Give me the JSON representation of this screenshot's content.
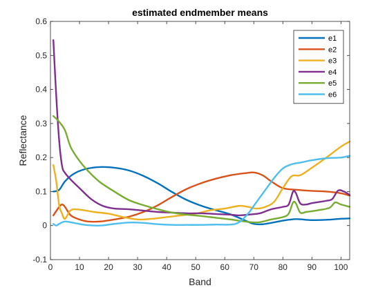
{
  "chart_data": {
    "type": "line",
    "title": "estimated endmember means",
    "xlabel": "Band",
    "ylabel": "Reflectance",
    "xlim": [
      0,
      103
    ],
    "ylim": [
      -0.1,
      0.6
    ],
    "xticks": [
      0,
      10,
      20,
      30,
      40,
      50,
      60,
      70,
      80,
      90,
      100
    ],
    "yticks": [
      -0.1,
      0,
      0.1,
      0.2,
      0.3,
      0.4,
      0.5,
      0.6
    ],
    "grid": false,
    "legend_position": "top-right",
    "series": [
      {
        "name": "e1",
        "color": "#0072BD",
        "x": [
          1,
          3,
          5,
          8,
          12,
          17,
          22,
          27,
          32,
          37,
          42,
          47,
          52,
          57,
          62,
          67,
          70,
          73,
          76,
          79,
          82,
          85,
          90,
          95,
          100,
          103
        ],
        "y": [
          0.1,
          0.105,
          0.13,
          0.152,
          0.166,
          0.172,
          0.17,
          0.162,
          0.146,
          0.124,
          0.098,
          0.075,
          0.058,
          0.045,
          0.033,
          0.015,
          0.005,
          0.004,
          0.008,
          0.013,
          0.017,
          0.019,
          0.016,
          0.017,
          0.02,
          0.021
        ]
      },
      {
        "name": "e2",
        "color": "#D95319",
        "x": [
          1,
          3,
          4,
          5,
          7,
          10,
          13,
          17,
          22,
          27,
          32,
          37,
          42,
          47,
          52,
          57,
          62,
          67,
          70,
          73,
          76,
          80,
          85,
          90,
          95,
          100,
          103
        ],
        "y": [
          0.03,
          0.055,
          0.062,
          0.055,
          0.03,
          0.018,
          0.012,
          0.012,
          0.018,
          0.026,
          0.04,
          0.06,
          0.085,
          0.108,
          0.125,
          0.138,
          0.148,
          0.154,
          0.156,
          0.148,
          0.13,
          0.11,
          0.105,
          0.102,
          0.1,
          0.095,
          0.088
        ]
      },
      {
        "name": "e3",
        "color": "#EDB120",
        "x": [
          1,
          2,
          3,
          4,
          5,
          7,
          10,
          15,
          20,
          25,
          30,
          35,
          40,
          45,
          50,
          55,
          60,
          65,
          68,
          71,
          74,
          77,
          80,
          83,
          86,
          90,
          95,
          100,
          103
        ],
        "y": [
          0.178,
          0.13,
          0.06,
          0.035,
          0.02,
          0.045,
          0.047,
          0.04,
          0.035,
          0.025,
          0.018,
          0.02,
          0.025,
          0.03,
          0.035,
          0.045,
          0.05,
          0.058,
          0.055,
          0.05,
          0.055,
          0.07,
          0.11,
          0.145,
          0.148,
          0.17,
          0.2,
          0.232,
          0.247
        ]
      },
      {
        "name": "e4",
        "color": "#7E2F8E",
        "x": [
          1,
          2,
          3,
          4,
          5,
          7,
          10,
          14,
          18,
          22,
          27,
          32,
          37,
          42,
          47,
          52,
          57,
          62,
          65,
          68,
          72,
          76,
          80,
          82,
          83.5,
          84.5,
          86,
          88,
          90,
          93,
          95,
          97,
          99,
          101,
          103
        ],
        "y": [
          0.545,
          0.38,
          0.25,
          0.175,
          0.155,
          0.135,
          0.11,
          0.078,
          0.058,
          0.05,
          0.048,
          0.044,
          0.04,
          0.038,
          0.036,
          0.036,
          0.034,
          0.032,
          0.03,
          0.032,
          0.036,
          0.048,
          0.055,
          0.062,
          0.1,
          0.095,
          0.065,
          0.062,
          0.066,
          0.07,
          0.073,
          0.078,
          0.103,
          0.1,
          0.09
        ]
      },
      {
        "name": "e5",
        "color": "#77AC30",
        "x": [
          1,
          3,
          5,
          7,
          10,
          13,
          17,
          22,
          27,
          32,
          37,
          42,
          47,
          52,
          57,
          62,
          66,
          69,
          72,
          76,
          80,
          82,
          83.5,
          84.5,
          86,
          88,
          92,
          96,
          98,
          100,
          103
        ],
        "y": [
          0.322,
          0.305,
          0.28,
          0.23,
          0.19,
          0.16,
          0.128,
          0.1,
          0.075,
          0.06,
          0.048,
          0.038,
          0.032,
          0.028,
          0.023,
          0.018,
          0.013,
          0.01,
          0.01,
          0.018,
          0.025,
          0.035,
          0.068,
          0.065,
          0.038,
          0.04,
          0.045,
          0.052,
          0.068,
          0.062,
          0.055
        ]
      },
      {
        "name": "e6",
        "color": "#4DBEEE",
        "x": [
          1,
          2,
          3,
          5,
          8,
          12,
          17,
          22,
          27,
          32,
          37,
          42,
          47,
          52,
          57,
          62,
          65,
          68,
          71,
          74,
          77,
          80,
          83,
          86,
          90,
          95,
          100,
          103
        ],
        "y": [
          0.005,
          0.0,
          0.005,
          0.012,
          0.008,
          0.002,
          0.0,
          0.005,
          0.009,
          0.008,
          0.004,
          0.002,
          0.002,
          0.002,
          0.003,
          0.003,
          0.01,
          0.035,
          0.07,
          0.105,
          0.14,
          0.168,
          0.18,
          0.185,
          0.192,
          0.198,
          0.2,
          0.205
        ]
      }
    ]
  }
}
